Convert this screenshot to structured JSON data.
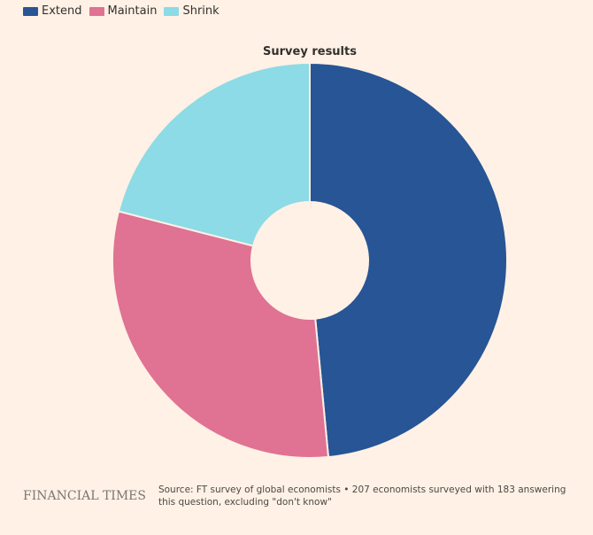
{
  "chart_data": {
    "type": "pie",
    "variant": "donut",
    "title": "Survey results",
    "categories": [
      "Extend",
      "Maintain",
      "Shrink"
    ],
    "values": [
      48.5,
      30.5,
      21.0
    ],
    "colors": [
      "#275595",
      "#e07293",
      "#8cdbe6"
    ],
    "legend_position": "top-left",
    "start_angle_deg": 0,
    "direction": "clockwise"
  },
  "legend": {
    "items": [
      {
        "label": "Extend",
        "color": "#275595"
      },
      {
        "label": "Maintain",
        "color": "#e07293"
      },
      {
        "label": "Shrink",
        "color": "#8cdbe6"
      }
    ]
  },
  "footer": {
    "logo": "FINANCIAL TIMES",
    "source": "Source: FT survey of global economists • 207 economists surveyed with 183 answering this question, excluding \"don't know\""
  }
}
